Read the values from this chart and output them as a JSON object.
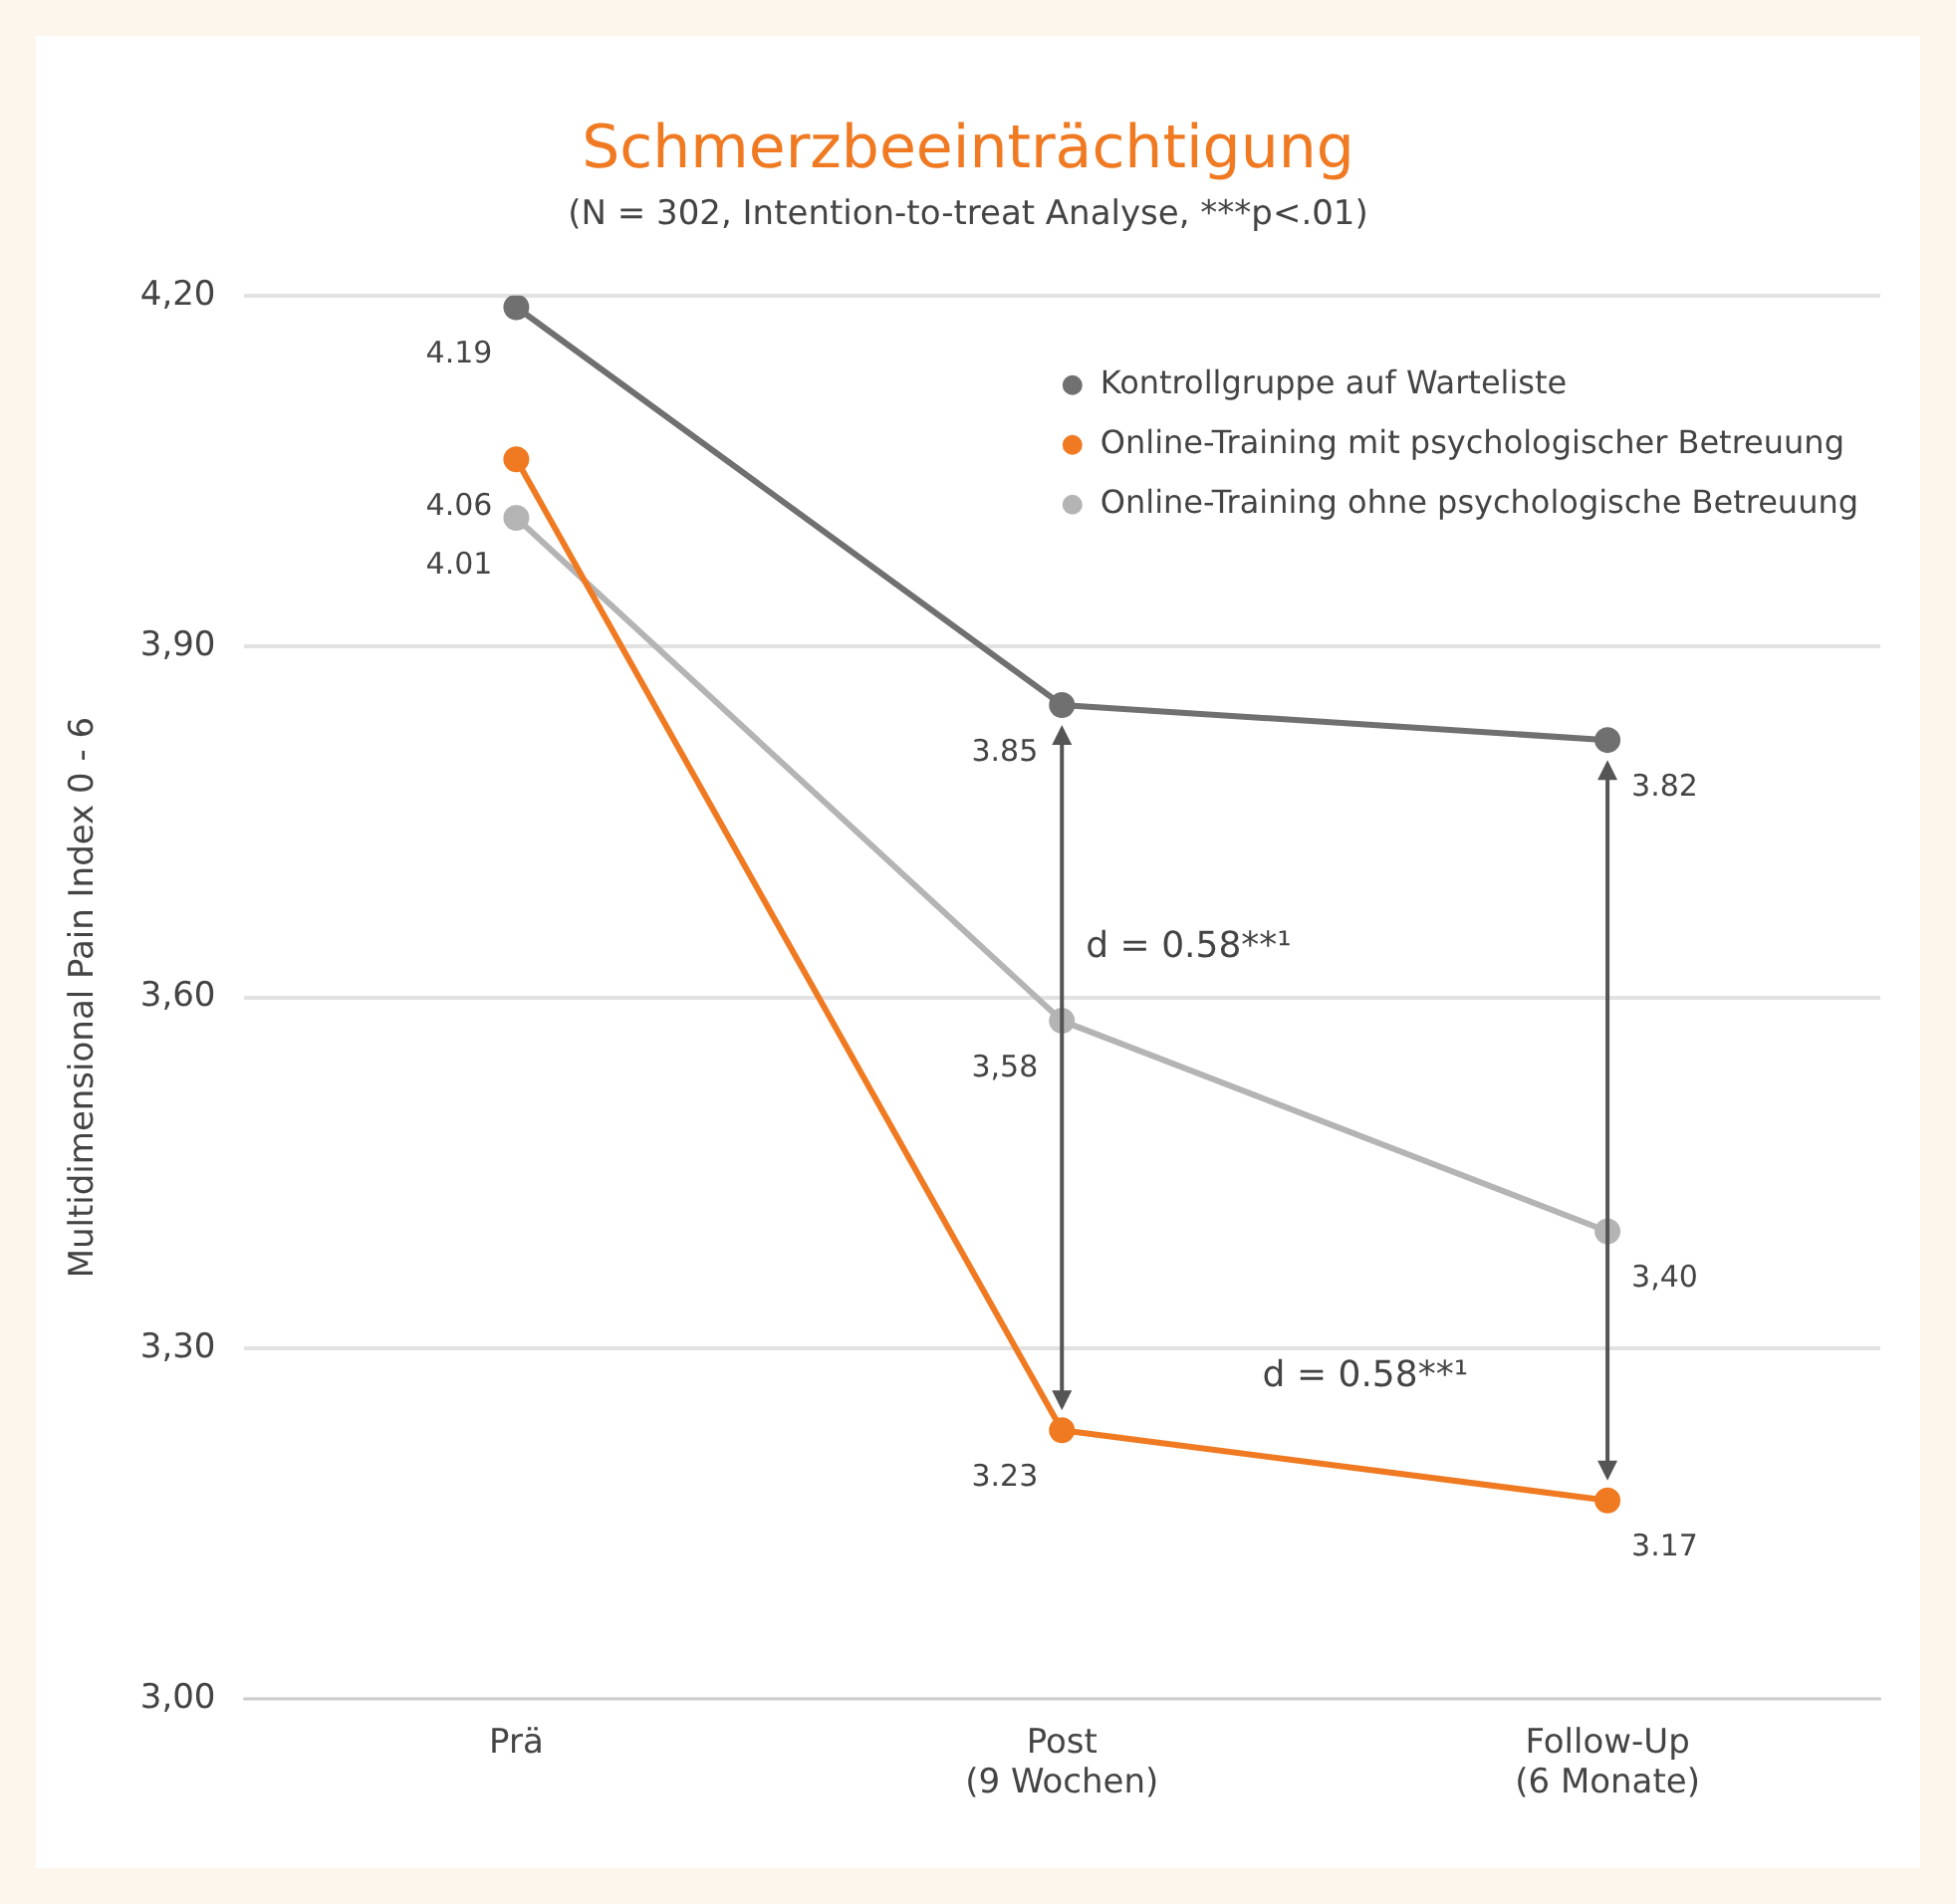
{
  "chart_data": {
    "type": "line",
    "title": "Schmerzbeeinträchtigung",
    "subtitle": "(N = 302, Intention-to-treat Analyse, ***p<.01)",
    "ylabel": "Multidimensional Pain Index 0 - 6",
    "categories": [
      "Prä",
      "Post\n(9 Wochen)",
      "Follow-Up\n(6 Monate)"
    ],
    "series": [
      {
        "name": "Kontrollgruppe auf Warteliste",
        "color": "#707070",
        "values": [
          4.19,
          3.85,
          3.82
        ],
        "value_labels": [
          "4.19",
          "3.85",
          "3.82"
        ]
      },
      {
        "name": "Online-Training mit psychologischer Betreuung",
        "color": "#f07a22",
        "values": [
          4.06,
          3.23,
          3.17
        ],
        "value_labels": [
          "4.06",
          "3.23",
          "3.17"
        ]
      },
      {
        "name": "Online-Training ohne psychologische Betreuung",
        "color": "#b4b4b4",
        "values": [
          4.01,
          3.58,
          3.4
        ],
        "value_labels": [
          "4.01",
          "3,58",
          "3,40"
        ]
      }
    ],
    "ylim": [
      3.0,
      4.2
    ],
    "yticks": [
      {
        "value": 3.0,
        "label": "3,00"
      },
      {
        "value": 3.3,
        "label": "3,30"
      },
      {
        "value": 3.6,
        "label": "3,60"
      },
      {
        "value": 3.9,
        "label": "3,90"
      },
      {
        "value": 4.2,
        "label": "4,20"
      }
    ],
    "annotations": [
      "d = 0.58**¹",
      "d = 0.58**¹"
    ],
    "grid": "y",
    "legend": "top right",
    "marker": "circle",
    "line_style": "solid"
  }
}
